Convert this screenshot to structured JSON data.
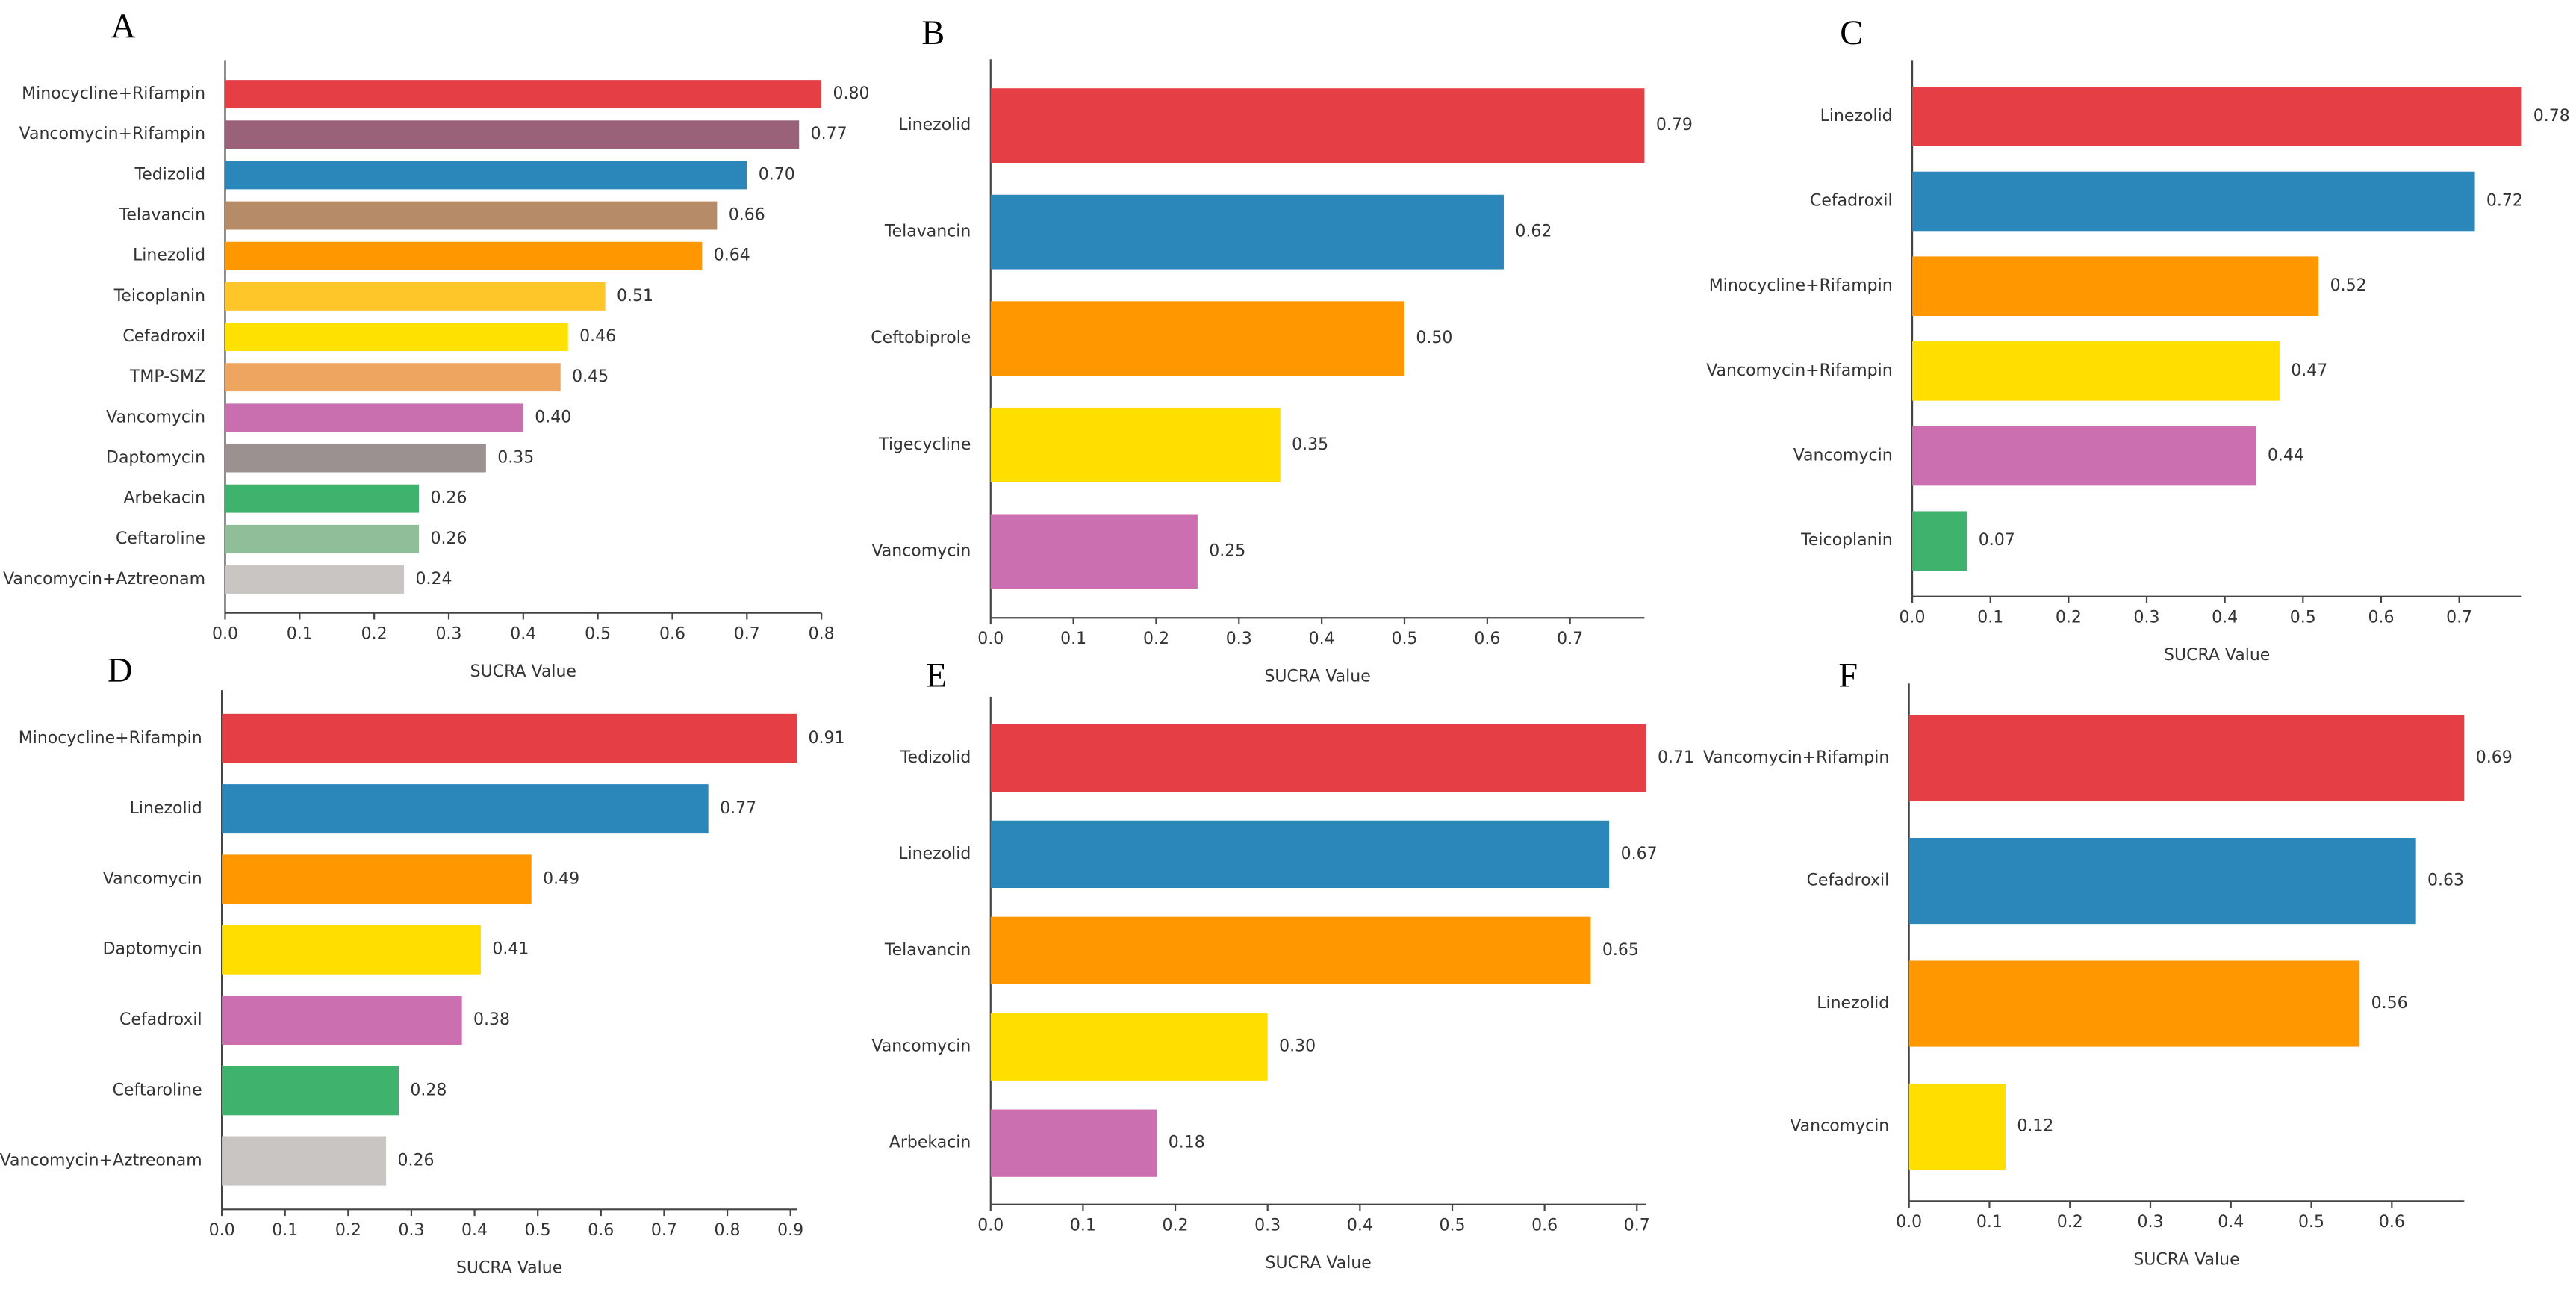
{
  "chart_data": [
    {
      "type": "bar",
      "orientation": "horizontal",
      "panel": "A",
      "xlabel": "SUCRA Value",
      "categories": [
        "Minocycline+Rifampin",
        "Vancomycin+Rifampin",
        "Tedizolid",
        "Telavancin",
        "Linezolid",
        "Teicoplanin",
        "Cefadroxil",
        "TMP-SMZ",
        "Vancomycin",
        "Daptomycin",
        "Arbekacin",
        "Ceftaroline",
        "Vancomycin+Aztreonam"
      ],
      "values": [
        0.8,
        0.77,
        0.7,
        0.66,
        0.64,
        0.51,
        0.46,
        0.45,
        0.4,
        0.35,
        0.26,
        0.26,
        0.24
      ],
      "value_labels": [
        "0.80",
        "0.77",
        "0.70",
        "0.66",
        "0.64",
        "0.51",
        "0.46",
        "0.45",
        "0.40",
        "0.35",
        "0.26",
        "0.26",
        "0.24"
      ],
      "colors": [
        "#e53f45",
        "#9a6279",
        "#2b87ba",
        "#b68c68",
        "#ff9700",
        "#ffc62a",
        "#ffe100",
        "#eea55f",
        "#c96fb0",
        "#9b9191",
        "#3fb36d",
        "#8fbe98",
        "#c9c5c3"
      ],
      "xlim": [
        0,
        0.8
      ],
      "xticks": [
        {
          "value": 0,
          "label": "0.0"
        },
        0.1,
        0.2,
        0.3,
        0.4,
        0.5,
        0.6,
        0.7,
        0.8
      ]
    },
    {
      "type": "bar",
      "orientation": "horizontal",
      "panel": "B",
      "xlabel": "SUCRA Value",
      "categories": [
        "Linezolid",
        "Telavancin",
        "Ceftobiprole",
        "Tigecycline",
        "Vancomycin"
      ],
      "values": [
        0.79,
        0.62,
        0.5,
        0.35,
        0.25
      ],
      "value_labels": [
        "0.79",
        "0.62",
        "0.50",
        "0.35",
        "0.25"
      ],
      "colors": [
        "#e53f45",
        "#2b87ba",
        "#ff9700",
        "#ffde00",
        "#cb6fb0"
      ],
      "xlim": [
        0,
        0.79
      ],
      "xticks": [
        {
          "value": 0,
          "label": "0.0"
        },
        0.1,
        0.2,
        0.3,
        0.4,
        0.5,
        0.6,
        0.7
      ]
    },
    {
      "type": "bar",
      "orientation": "horizontal",
      "panel": "C",
      "xlabel": "SUCRA Value",
      "categories": [
        "Linezolid",
        "Cefadroxil",
        "Minocycline+Rifampin",
        "Vancomycin+Rifampin",
        "Vancomycin",
        "Teicoplanin"
      ],
      "values": [
        0.78,
        0.72,
        0.52,
        0.47,
        0.44,
        0.07
      ],
      "value_labels": [
        "0.78",
        "0.72",
        "0.52",
        "0.47",
        "0.44",
        "0.07"
      ],
      "colors": [
        "#e53f45",
        "#2b87ba",
        "#ff9700",
        "#ffde00",
        "#cb6fb0",
        "#3fb36d"
      ],
      "xlim": [
        0,
        0.78
      ],
      "xticks": [
        {
          "value": 0,
          "label": "0.0"
        },
        0.1,
        0.2,
        0.3,
        0.4,
        0.5,
        0.6,
        0.7
      ]
    },
    {
      "type": "bar",
      "orientation": "horizontal",
      "panel": "D",
      "xlabel": "SUCRA Value",
      "categories": [
        "Minocycline+Rifampin",
        "Linezolid",
        "Vancomycin",
        "Daptomycin",
        "Cefadroxil",
        "Ceftaroline",
        "Vancomycin+Aztreonam"
      ],
      "values": [
        0.91,
        0.77,
        0.49,
        0.41,
        0.38,
        0.28,
        0.26
      ],
      "value_labels": [
        "0.91",
        "0.77",
        "0.49",
        "0.41",
        "0.38",
        "0.28",
        "0.26"
      ],
      "colors": [
        "#e53f45",
        "#2b87ba",
        "#ff9700",
        "#ffde00",
        "#cb6fb0",
        "#3fb36d",
        "#c9c5c3"
      ],
      "xlim": [
        0,
        0.91
      ],
      "xticks": [
        {
          "value": 0,
          "label": "0.0"
        },
        0.1,
        0.2,
        0.3,
        0.4,
        0.5,
        0.6,
        0.7,
        0.8,
        0.9
      ]
    },
    {
      "type": "bar",
      "orientation": "horizontal",
      "panel": "E",
      "xlabel": "SUCRA Value",
      "categories": [
        "Tedizolid",
        "Linezolid",
        "Telavancin",
        "Vancomycin",
        "Arbekacin"
      ],
      "values": [
        0.71,
        0.67,
        0.65,
        0.3,
        0.18
      ],
      "value_labels": [
        "0.71",
        "0.67",
        "0.65",
        "0.30",
        "0.18"
      ],
      "colors": [
        "#e53f45",
        "#2b87ba",
        "#ff9700",
        "#ffde00",
        "#cb6fb0"
      ],
      "xlim": [
        0,
        0.71
      ],
      "xticks": [
        {
          "value": 0,
          "label": "0.0"
        },
        0.1,
        0.2,
        0.3,
        0.4,
        0.5,
        0.6,
        0.7
      ]
    },
    {
      "type": "bar",
      "orientation": "horizontal",
      "panel": "F",
      "xlabel": "SUCRA Value",
      "categories": [
        "Vancomycin+Rifampin",
        "Cefadroxil",
        "Linezolid",
        "Vancomycin"
      ],
      "values": [
        0.69,
        0.63,
        0.56,
        0.12
      ],
      "value_labels": [
        "0.69",
        "0.63",
        "0.56",
        "0.12"
      ],
      "colors": [
        "#e53f45",
        "#2b87ba",
        "#ff9700",
        "#ffde00"
      ],
      "xlim": [
        0,
        0.69
      ],
      "xticks": [
        {
          "value": 0,
          "label": "0.0"
        },
        0.1,
        0.2,
        0.3,
        0.4,
        0.5,
        0.6
      ]
    }
  ]
}
